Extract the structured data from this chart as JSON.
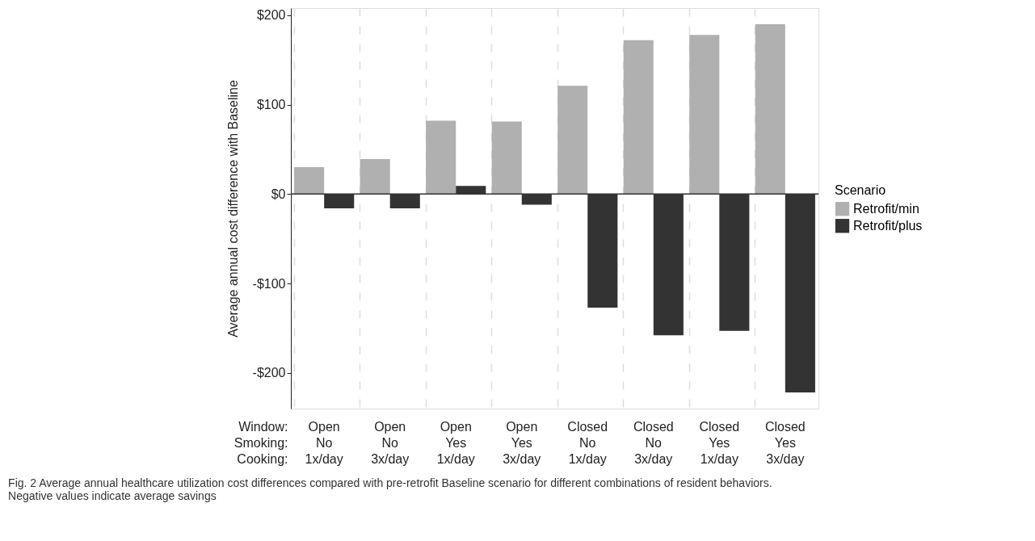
{
  "chart_data": {
    "type": "bar",
    "categories": [
      "Open\nNo\n1x/day",
      "Open\nNo\n3x/day",
      "Open\nYes\n1x/day",
      "Open\nYes\n3x/day",
      "Closed\nNo\n1x/day",
      "Closed\nNo\n3x/day",
      "Closed\nYes\n1x/day",
      "Closed\nYes\n3x/day"
    ],
    "xlabel": "Window:\nSmoking:\nCooking:",
    "ylabel": "Average annual cost difference with Baseline",
    "legend_title": "Scenario",
    "series": [
      {
        "name": "Retrofit/min",
        "color": "#b0b0b0",
        "values": [
          30,
          39,
          82,
          81,
          121,
          172,
          178,
          190
        ]
      },
      {
        "name": "Retrofit/plus",
        "color": "#333333",
        "values": [
          -16,
          -16,
          9,
          -12,
          -127,
          -158,
          -153,
          -222
        ]
      }
    ],
    "ylim": [
      -240,
      208
    ],
    "yticks": [
      {
        "value": -200,
        "label": "-$200"
      },
      {
        "value": -100,
        "label": "-$100"
      },
      {
        "value": 0,
        "label": "$0"
      },
      {
        "value": 100,
        "label": "$100"
      },
      {
        "value": 200,
        "label": "$200"
      }
    ],
    "ref_lines": [
      {
        "axis": "y",
        "value": 0,
        "label": null,
        "color": "#333333"
      }
    ],
    "grid": "x",
    "legend": "right",
    "annotations": [
      "Fig. 2 Average annual healthcare utilization cost differences compared with pre-retrofit Baseline scenario for different combinations of resident behaviors. Negative values indicate average savings"
    ]
  }
}
